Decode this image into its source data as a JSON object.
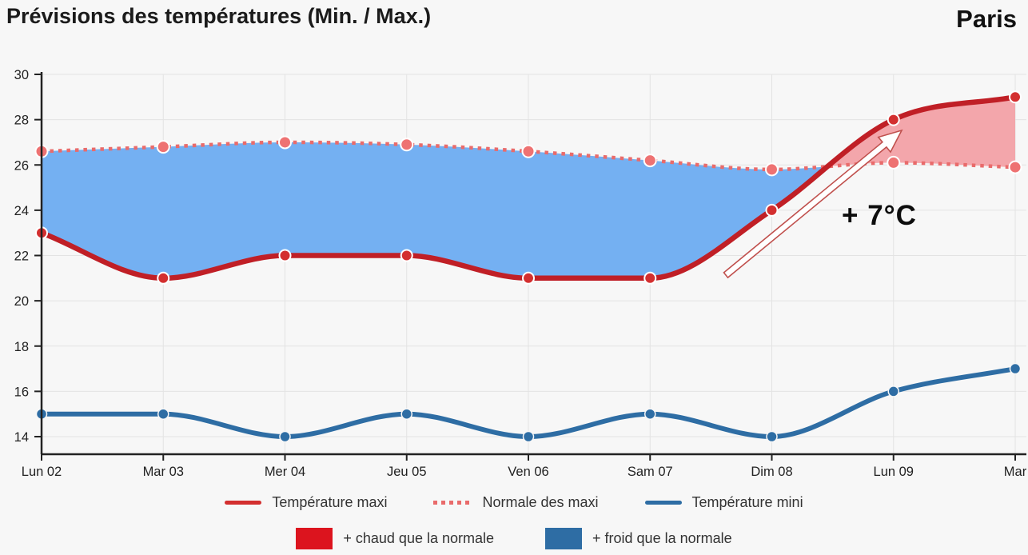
{
  "header": {
    "title": "Prévisions des températures (Min. / Max.)",
    "city": "Paris"
  },
  "annotation": {
    "text": "+ 7°C"
  },
  "legend": {
    "maxi": "Température maxi",
    "normale": "Normale des maxi",
    "mini": "Température mini",
    "warmer": "+ chaud que la normale",
    "colder": "+ froid que la normale"
  },
  "colors": {
    "background": "#f7f7f7",
    "grid": "#e3e3e3",
    "axis": "#222222",
    "tick_text": "#222222",
    "maxi_line": "#c01f26",
    "maxi_marker": "#d32f2f",
    "normale_line": "#e96b6b",
    "normale_marker": "#ee7272",
    "mini_line": "#2e6da4",
    "warm_fill": "#f3a6ab",
    "cold_fill": "#74b0f2",
    "warm_swatch": "#dc141e",
    "cold_swatch": "#2e6da4",
    "arrow_stroke": "#c0504d",
    "arrow_fill": "#ffffff",
    "marker_ring": "#ffffff"
  },
  "chart_data": {
    "type": "line",
    "title": "Prévisions des températures (Min. / Max.)",
    "x": [
      "Lun 02",
      "Mar 03",
      "Mer 04",
      "Jeu 05",
      "Ven 06",
      "Sam 07",
      "Dim 08",
      "Lun 09",
      "Mar"
    ],
    "series": [
      {
        "name": "Température maxi",
        "values": [
          23,
          21,
          22,
          22,
          21,
          21,
          24,
          28,
          29
        ]
      },
      {
        "name": "Normale des maxi",
        "values": [
          26.6,
          26.8,
          27.0,
          26.9,
          26.6,
          26.2,
          25.8,
          26.1,
          25.9
        ]
      },
      {
        "name": "Température mini",
        "values": [
          15,
          15,
          14,
          15,
          14,
          15,
          14,
          16,
          17
        ]
      }
    ],
    "fills": [
      {
        "name": "+ froid que la normale",
        "between": [
          "Température maxi",
          "Normale des maxi"
        ],
        "where": "maxi < normale"
      },
      {
        "name": "+ chaud que la normale",
        "between": [
          "Température maxi",
          "Normale des maxi"
        ],
        "where": "maxi > normale"
      }
    ],
    "annotations": [
      {
        "type": "arrow",
        "text": "+ 7°C",
        "meaning": "hausse de 21°C à 28°C"
      }
    ],
    "xlabel": "",
    "ylabel": "",
    "ylim": [
      14,
      30
    ],
    "yticks": [
      14,
      16,
      18,
      20,
      22,
      24,
      26,
      28,
      30
    ],
    "grid": true,
    "legend_position": "bottom"
  }
}
